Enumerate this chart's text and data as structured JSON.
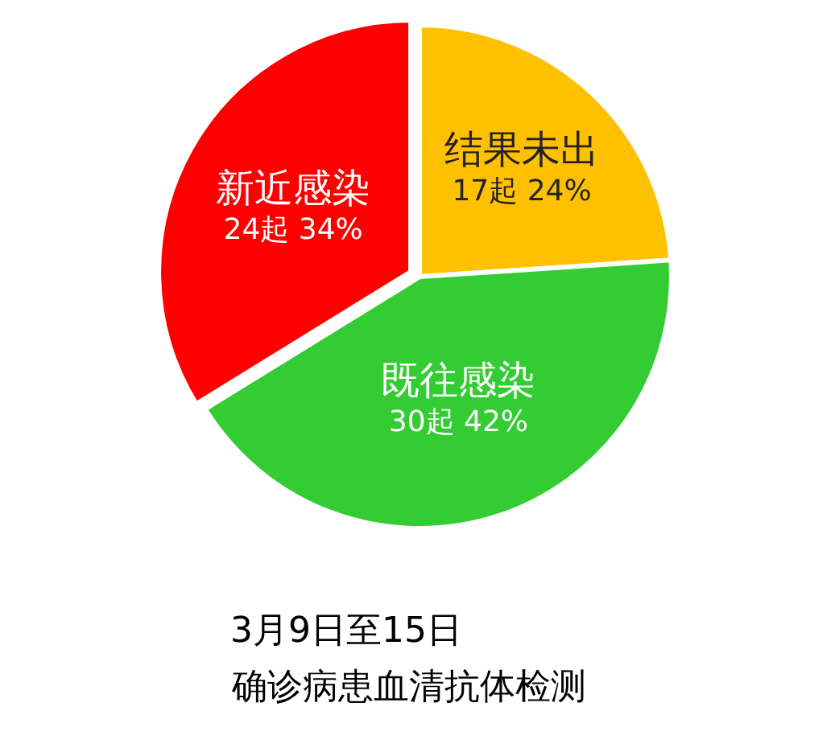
{
  "chart_data": {
    "type": "pie",
    "title": "3月9日至15日",
    "subtitle": "确诊病患血清抗体检测",
    "categories": [
      "结果未出",
      "既往感染",
      "新近感染"
    ],
    "values": [
      17,
      30,
      24
    ],
    "value_labels": [
      "17起 24%",
      "30起 42%",
      "24起 34%"
    ],
    "colors": [
      "#ffc000",
      "#33cc33",
      "#ff0000"
    ],
    "legend": false
  }
}
